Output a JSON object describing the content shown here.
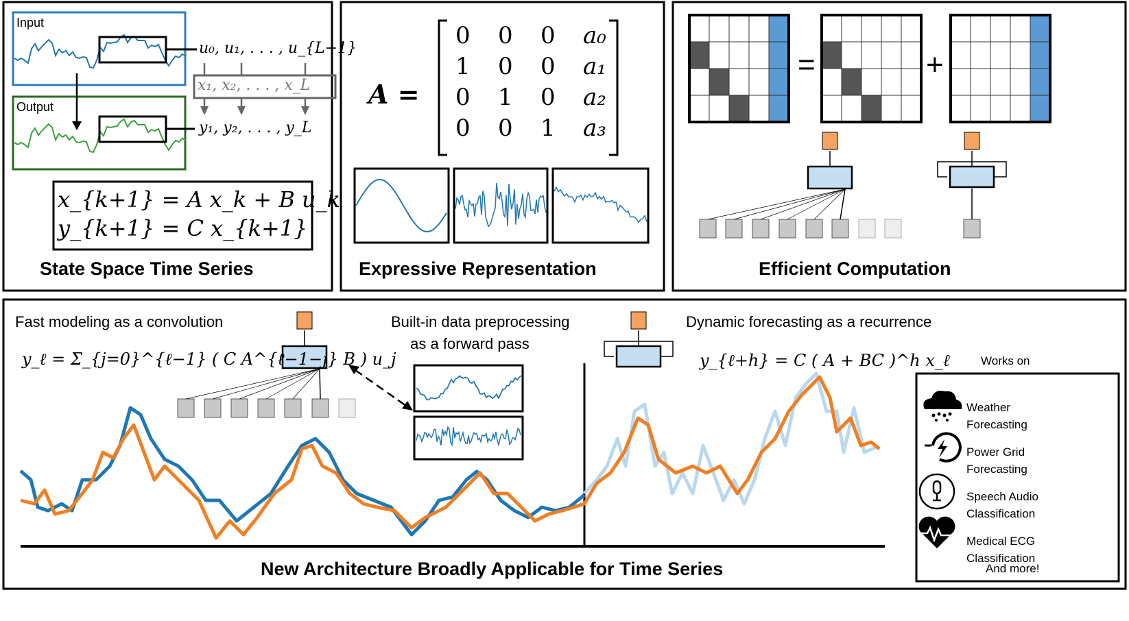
{
  "panels": {
    "state_space": {
      "title": "State Space Time Series",
      "input_label": "Input",
      "output_label": "Output",
      "u_seq": "u₀, u₁, . . . , u_{L−1}",
      "x_seq": "x₁, x₂, . . . , x_L",
      "y_seq": "y₁, y₂, . . . , y_L",
      "eq1": "x_{k+1} = A x_k + B u_k",
      "eq2": "y_{k+1} = C x_{k+1}"
    },
    "expressive": {
      "title": "Expressive Representation",
      "lhs": "A =",
      "matrix": [
        [
          "0",
          "0",
          "0",
          "a₀"
        ],
        [
          "1",
          "0",
          "0",
          "a₁"
        ],
        [
          "0",
          "1",
          "0",
          "a₂"
        ],
        [
          "0",
          "0",
          "1",
          "a₃"
        ]
      ]
    },
    "efficient": {
      "title": "Efficient Computation",
      "equals": "=",
      "plus": "+"
    }
  },
  "bottom": {
    "title": "New Architecture Broadly Applicable for Time Series",
    "conv_heading": "Fast modeling as a convolution",
    "conv_formula": "y_ℓ = Σ_{j=0}^{ℓ−1} ( C A^{ℓ−1−j} B ) u_j",
    "preprocess_heading_1": "Built-in data preprocessing",
    "preprocess_heading_2": "as a forward pass",
    "recur_heading": "Dynamic forecasting as a recurrence",
    "recur_formula": "y_{ℓ+h} = C ( A + BC )^h x_ℓ",
    "works_on": "Works on",
    "applications": [
      {
        "icon": "weather-icon",
        "line1": "Weather",
        "line2": "Forecasting"
      },
      {
        "icon": "power-grid-icon",
        "line1": "Power Grid",
        "line2": "Forecasting"
      },
      {
        "icon": "microphone-icon",
        "line1": "Speech Audio",
        "line2": "Classification"
      },
      {
        "icon": "heart-ecg-icon",
        "line1": "Medical ECG",
        "line2": "Classification"
      }
    ],
    "and_more": "And more!"
  },
  "colors": {
    "blue": "#1f77b4",
    "orange": "#f07f23",
    "light_blue": "#b9d8ee",
    "green": "#3ca03c",
    "block_blue": "#c5def2",
    "grid_blue": "#5b9bd5"
  }
}
